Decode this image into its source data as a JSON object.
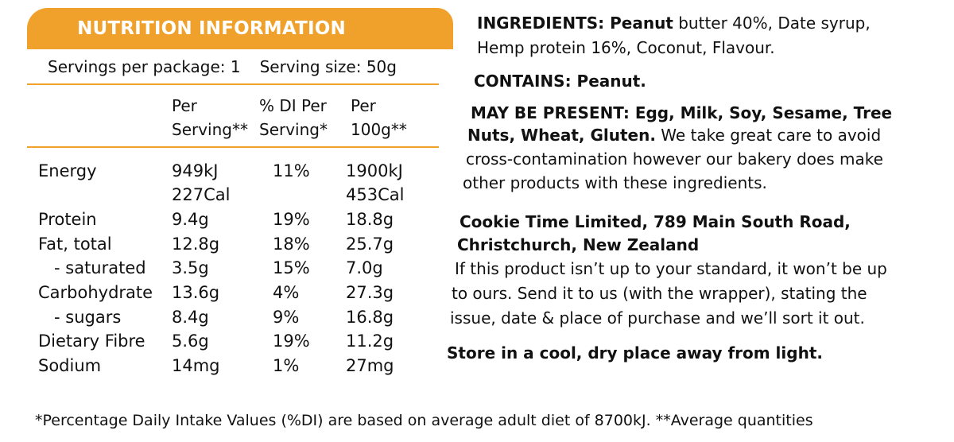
{
  "nutrition": {
    "header": "NUTRITION INFORMATION",
    "servings_per_package": "Servings per package: 1",
    "serving_size": "Serving size: 50g",
    "columns": [
      [
        "Per",
        "Serving**"
      ],
      [
        "% DI Per",
        "Serving*"
      ],
      [
        "Per",
        "100g**"
      ]
    ],
    "rows": [
      {
        "name": "Energy",
        "per_serving": "949kJ",
        "per_serving_2": "227Cal",
        "di": "11%",
        "per_100g": "1900kJ",
        "per_100g_2": "453Cal"
      },
      {
        "name": "Protein",
        "per_serving": "9.4g",
        "di": "19%",
        "per_100g": "18.8g"
      },
      {
        "name": "Fat, total",
        "per_serving": "12.8g",
        "di": "18%",
        "per_100g": "25.7g"
      },
      {
        "name": "- saturated",
        "per_serving": "3.5g",
        "di": "15%",
        "per_100g": "7.0g"
      },
      {
        "name": "Carbohydrate",
        "per_serving": "13.6g",
        "di": "4%",
        "per_100g": "27.3g"
      },
      {
        "name": "- sugars",
        "per_serving": "8.4g",
        "di": "9%",
        "per_100g": "16.8g"
      },
      {
        "name": "Dietary Fibre",
        "per_serving": "5.6g",
        "di": "19%",
        "per_100g": "11.2g"
      },
      {
        "name": "Sodium",
        "per_serving": "14mg",
        "di": "1%",
        "per_100g": "27mg"
      }
    ]
  },
  "ingredients": {
    "label": "INGREDIENTS: Peanut",
    "line1_rest": " butter 40%, Date syrup,",
    "line2": "Hemp protein 16%, Coconut, Flavour."
  },
  "contains": "CONTAINS: Peanut.",
  "may_be_present": {
    "line1": "MAY BE PRESENT: Egg, Milk, Soy, Sesame, Tree",
    "line2_bold": "Nuts, Wheat, Gluten.",
    "line2_rest": " We take great care to avoid",
    "line3": "cross-contamination however our bakery does make",
    "line4": "other products with these ingredients."
  },
  "company": {
    "line1": "Cookie Time Limited, 789 Main South Road,",
    "line2": "Christchurch, New Zealand",
    "text1": "If this product isn’t up to your standard, it won’t be up",
    "text2": "to ours. Send it to us (with the wrapper), stating the",
    "text3": "issue, date & place of purchase and we’ll sort it out."
  },
  "storage": "Store in a cool, dry place away from light.",
  "footnote": "*Percentage Daily Intake Values (%DI) are based on average adult diet of 8700kJ. **Average quantities",
  "colors": {
    "accent": "#f0a12c",
    "text": "#111111"
  }
}
